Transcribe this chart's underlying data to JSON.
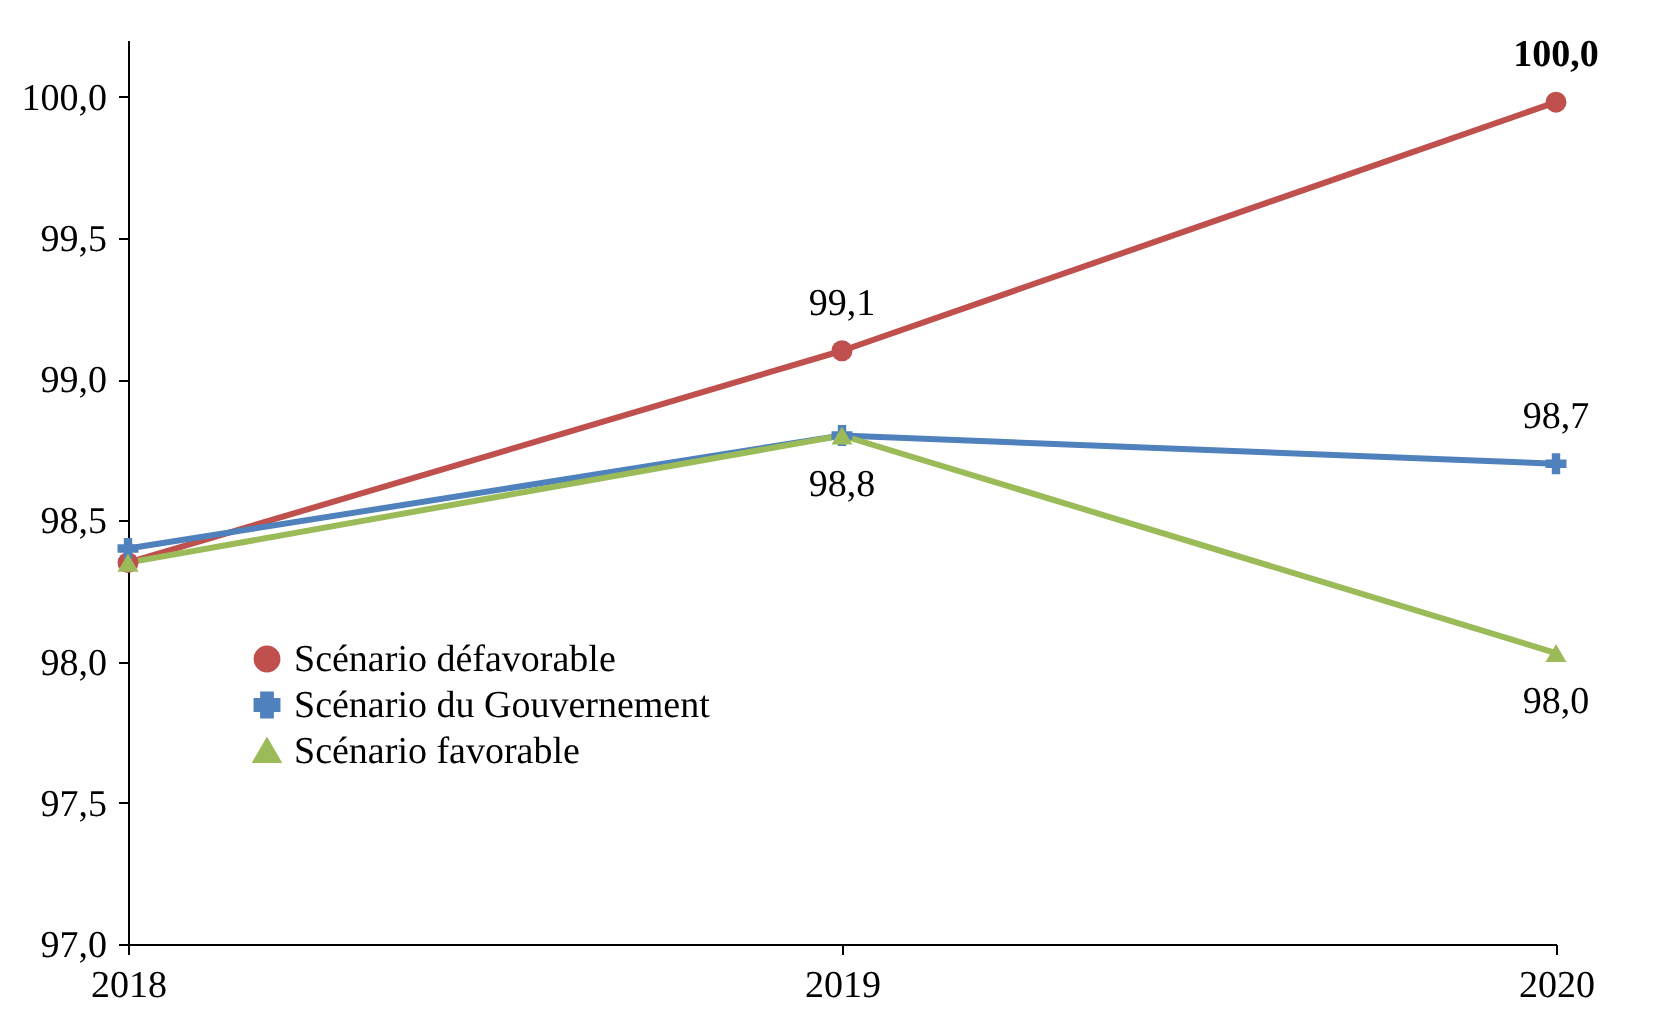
{
  "chart_data": {
    "type": "line",
    "x": [
      2018,
      2019,
      2020
    ],
    "xlim": [
      2018,
      2020
    ],
    "xticks": [
      2018,
      2019,
      2020
    ],
    "ylim": [
      97,
      100.2
    ],
    "yticks": [
      {
        "value": 97,
        "label": "97,0"
      },
      {
        "value": 97.5,
        "label": "97,5"
      },
      {
        "value": 98,
        "label": "98,0"
      },
      {
        "value": 98.5,
        "label": "98,5"
      },
      {
        "value": 99,
        "label": "99,0"
      },
      {
        "value": 99.5,
        "label": "99,5"
      },
      {
        "value": 100,
        "label": "100,0"
      }
    ],
    "grid": false,
    "legend": "left",
    "line_style": "solid",
    "series": [
      {
        "name": "Scénario défavorable",
        "color": "#c0504d",
        "marker": "circle",
        "values": [
          98.35,
          99.1,
          99.98
        ],
        "value_labels": [
          null,
          "99,1",
          "100,0"
        ]
      },
      {
        "name": "Scénario du Gouvernement",
        "color": "#4f81bd",
        "marker": "cross",
        "values": [
          98.4,
          98.8,
          98.7
        ],
        "value_labels": [
          null,
          null,
          "98,7"
        ]
      },
      {
        "name": "Scénario favorable",
        "color": "#9bbb59",
        "marker": "triangle",
        "values": [
          98.35,
          98.8,
          98.03
        ],
        "value_labels": [
          null,
          "98,8",
          "98,0"
        ]
      }
    ]
  }
}
